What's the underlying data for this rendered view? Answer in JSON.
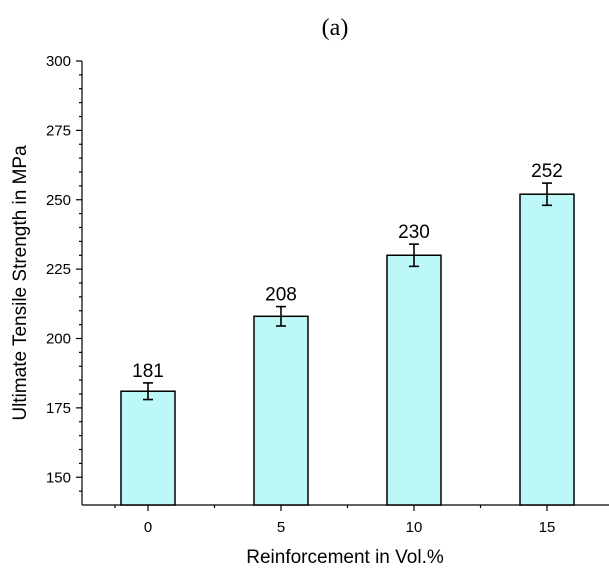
{
  "chart_data": {
    "type": "bar",
    "panel_label": "(a)",
    "xlabel": "Reinforcement in Vol.%",
    "ylabel": "Ultimate Tensile Strength in MPa",
    "categories": [
      "0",
      "5",
      "10",
      "15"
    ],
    "values": [
      181,
      208,
      230,
      252
    ],
    "value_labels": [
      "181",
      "208",
      "230",
      "252"
    ],
    "error": [
      3,
      3.5,
      4,
      4
    ],
    "ylim": [
      140,
      300
    ],
    "yticks": [
      150,
      175,
      200,
      225,
      250,
      275,
      300
    ],
    "ytick_labels": [
      "150",
      "175",
      "200",
      "225",
      "250",
      "275",
      "300"
    ],
    "yminor_step": 5,
    "grid": false,
    "bar_color": "#bdf8f8",
    "edge_color": "#000000"
  }
}
